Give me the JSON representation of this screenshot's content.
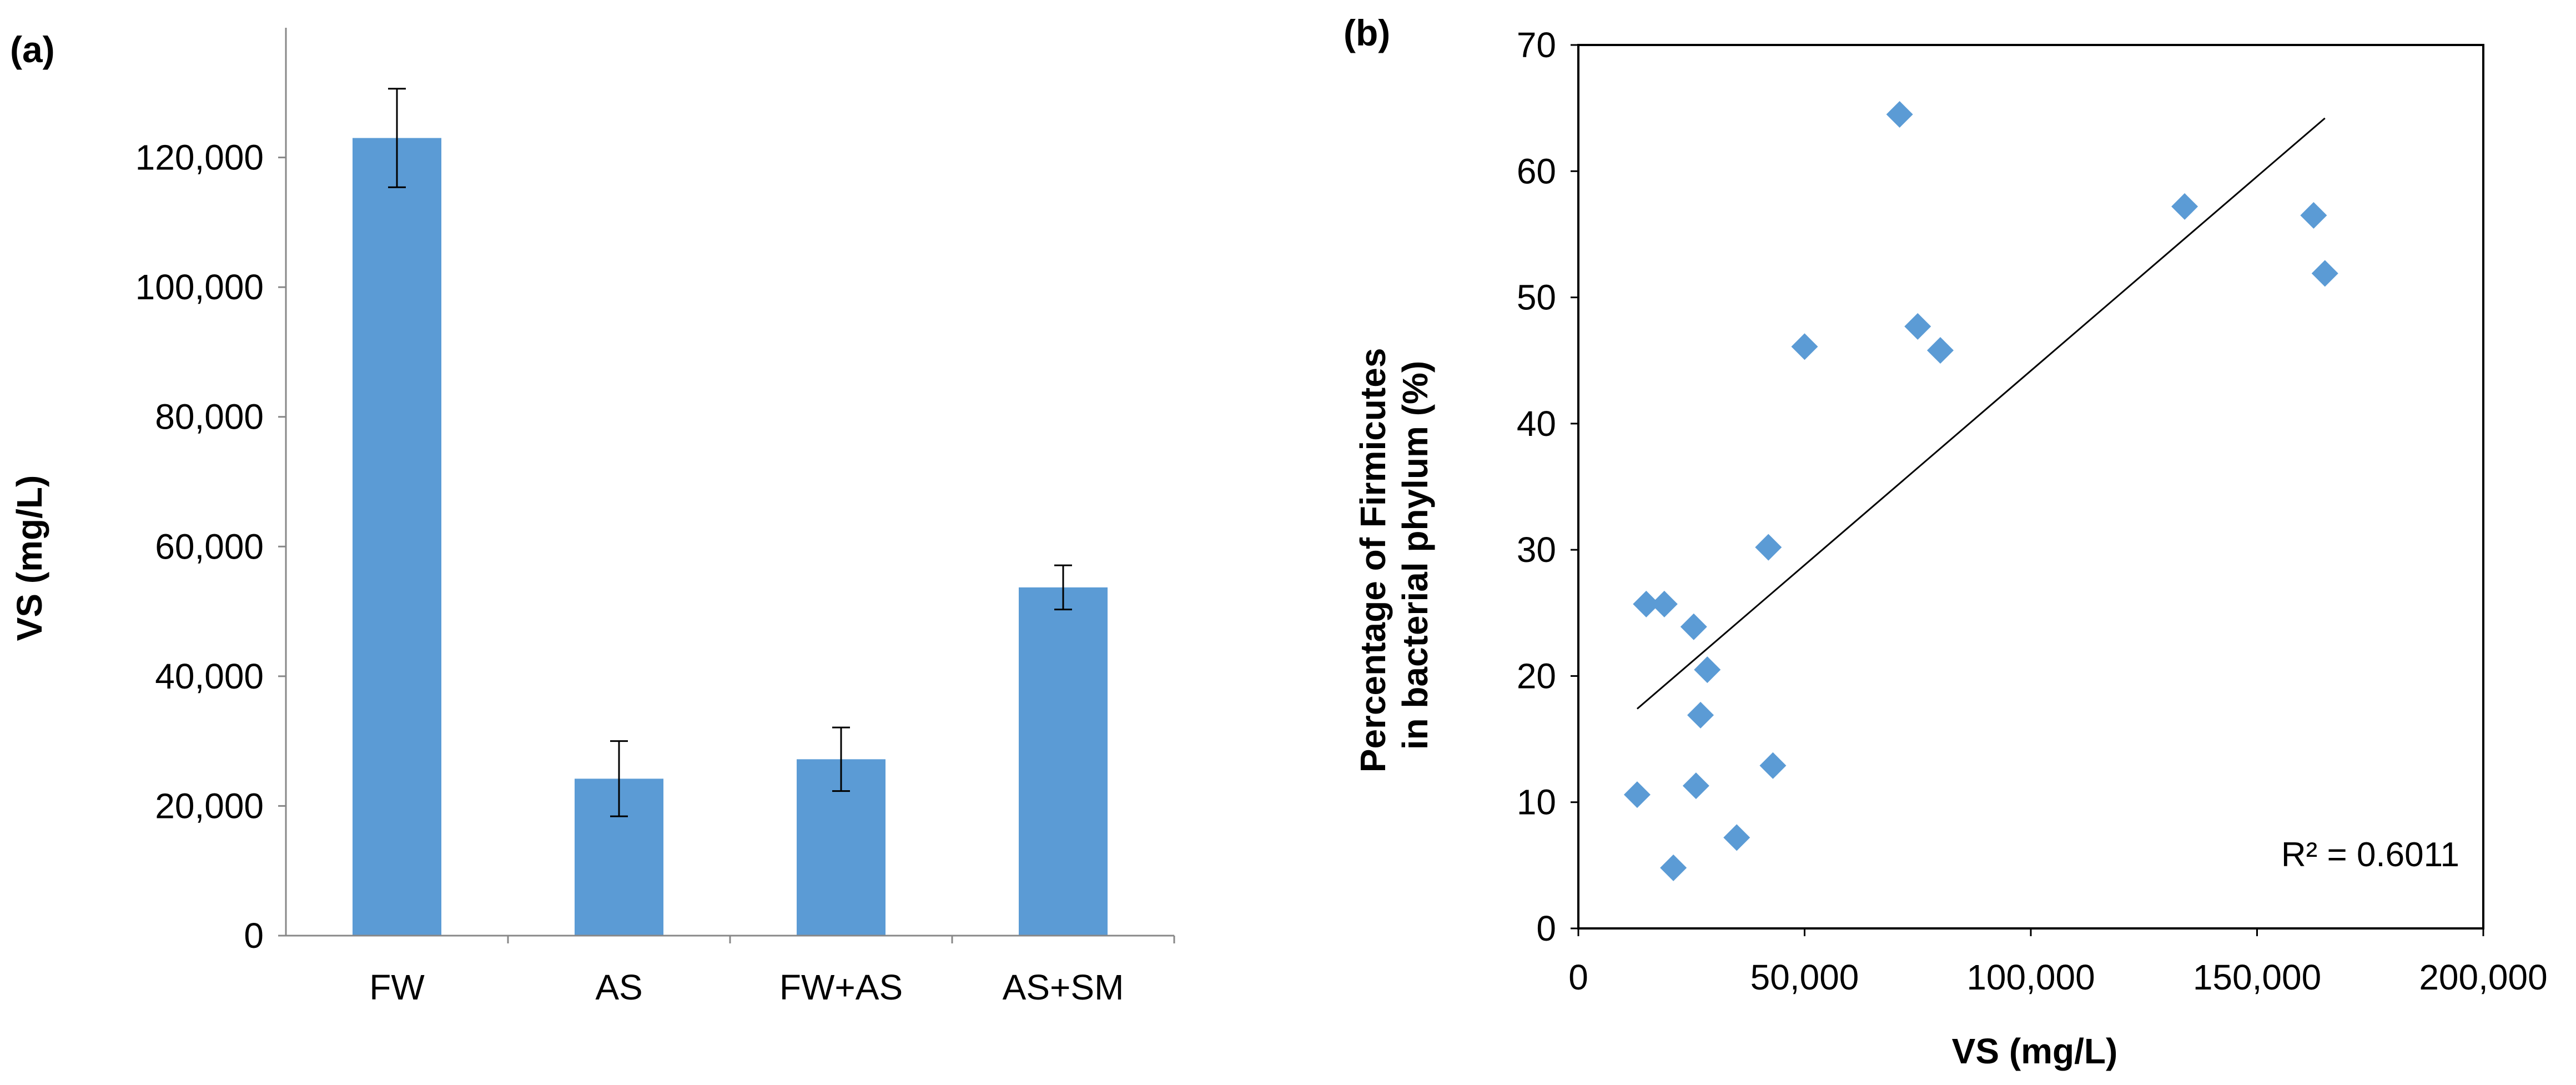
{
  "chart_data": [
    {
      "panel_label": "(a)",
      "type": "bar",
      "categories": [
        "FW",
        "AS",
        "FW+AS",
        "AS+SM"
      ],
      "values": [
        123000,
        24200,
        27200,
        53700
      ],
      "error": [
        7600,
        5800,
        4900,
        3400
      ],
      "ylabel": "VS (mg/L)",
      "xlabel": "",
      "ylim": [
        0,
        140000
      ],
      "yticks": [
        0,
        20000,
        40000,
        60000,
        80000,
        100000,
        120000
      ],
      "ytick_labels": [
        "0",
        "20,000",
        "40,000",
        "60,000",
        "80,000",
        "100,000",
        "120,000"
      ],
      "bar_color": "#5b9bd5",
      "grid": false
    },
    {
      "panel_label": "(b)",
      "type": "scatter",
      "xlabel": "VS (mg/L)",
      "ylabel_lines": [
        "Percentage of Firmicutes",
        "in bacterial phylum (%)"
      ],
      "xlim": [
        0,
        200000
      ],
      "ylim": [
        0,
        70
      ],
      "xticks": [
        0,
        50000,
        100000,
        150000,
        200000
      ],
      "xtick_labels": [
        "0",
        "50,000",
        "100,000",
        "150,000",
        "200,000"
      ],
      "yticks": [
        0,
        10,
        20,
        30,
        40,
        50,
        60,
        70
      ],
      "ytick_labels": [
        "0",
        "10",
        "20",
        "30",
        "40",
        "50",
        "60",
        "70"
      ],
      "points": [
        {
          "x": 13000,
          "y": 10.6
        },
        {
          "x": 15000,
          "y": 25.7
        },
        {
          "x": 19000,
          "y": 25.7
        },
        {
          "x": 21000,
          "y": 4.8
        },
        {
          "x": 25500,
          "y": 23.9
        },
        {
          "x": 26000,
          "y": 11.3
        },
        {
          "x": 27000,
          "y": 16.9
        },
        {
          "x": 28500,
          "y": 20.5
        },
        {
          "x": 35000,
          "y": 7.2
        },
        {
          "x": 42000,
          "y": 30.2
        },
        {
          "x": 43000,
          "y": 12.9
        },
        {
          "x": 50000,
          "y": 46.1
        },
        {
          "x": 71000,
          "y": 64.5
        },
        {
          "x": 75000,
          "y": 47.7
        },
        {
          "x": 80000,
          "y": 45.8
        },
        {
          "x": 134000,
          "y": 57.2
        },
        {
          "x": 162500,
          "y": 56.5
        },
        {
          "x": 165000,
          "y": 51.9
        }
      ],
      "trendline": {
        "x": [
          13000,
          165000
        ],
        "y": [
          17.4,
          64.2
        ]
      },
      "annotation": "R² = 0.6011",
      "marker_color": "#5b9bd5",
      "grid": false
    }
  ]
}
